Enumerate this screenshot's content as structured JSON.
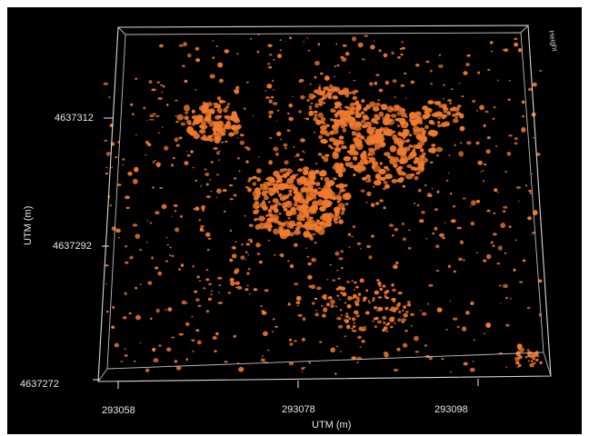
{
  "view": {
    "x_axis_title": "UTM (m)",
    "y_axis_title": "UTM (m)",
    "z_axis_title": "Height",
    "x_ticks": [
      "293058",
      "293078",
      "293098"
    ],
    "y_ticks": [
      "4637312",
      "4637292",
      "4637272"
    ],
    "background_color": "#000000",
    "point_color": "#f07a2e",
    "frame_color": "#d8d8d8"
  }
}
